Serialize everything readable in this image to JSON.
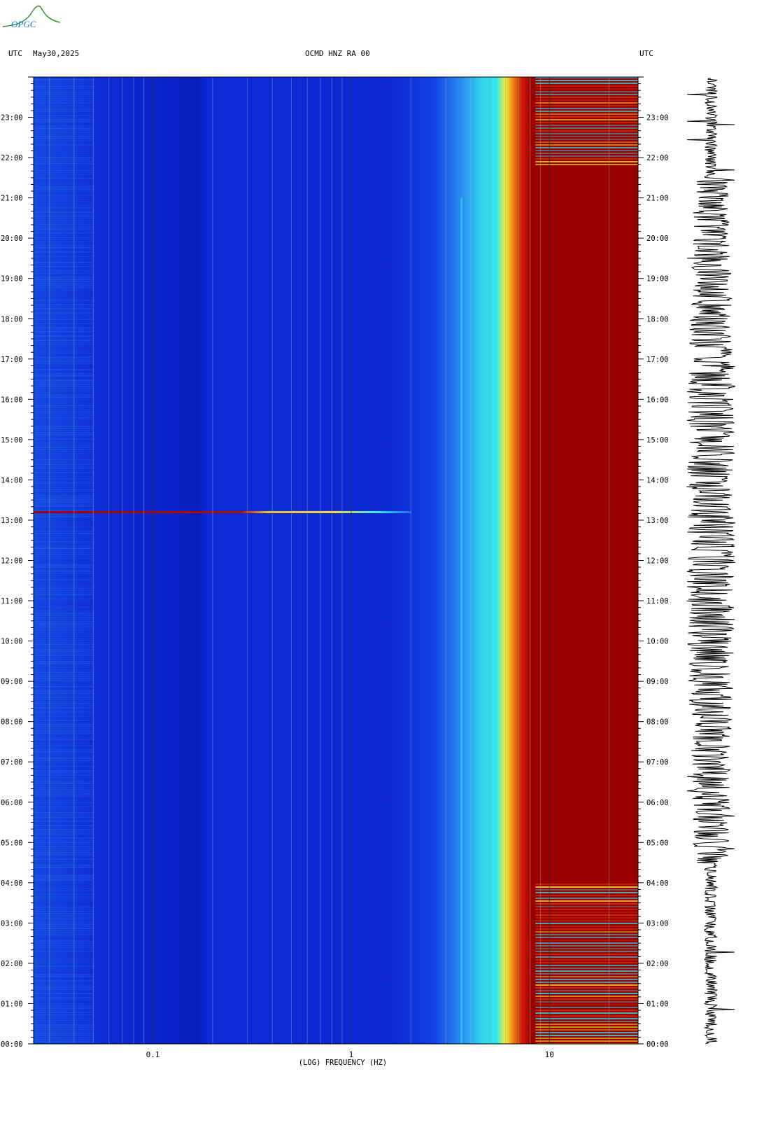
{
  "header": {
    "left_tz": "UTC",
    "date": "May30,2025",
    "station": "OCMD HNZ RA 00",
    "right_tz": "UTC"
  },
  "logo_text": "OPGC",
  "colors": {
    "blue": "#0a1ecf",
    "cyan": "#2ee6f0",
    "yellow": "#f2f23a",
    "red": "#9b0000",
    "trace": "#000000"
  },
  "chart_data": {
    "type": "heatmap",
    "title": "OCMD HNZ RA 00",
    "xlabel": "(LOG) FREQUENCY (HZ)",
    "ylabel": "",
    "x_scale": "log",
    "xlim": [
      0.025,
      28
    ],
    "x_tick_labels": [
      {
        "value": 0.1,
        "label": "0.1"
      },
      {
        "value": 1,
        "label": "1"
      },
      {
        "value": 10,
        "label": "10"
      }
    ],
    "y_tick_labels": [
      "00:00",
      "01:00",
      "02:00",
      "03:00",
      "04:00",
      "05:00",
      "06:00",
      "07:00",
      "08:00",
      "09:00",
      "10:00",
      "11:00",
      "12:00",
      "13:00",
      "14:00",
      "15:00",
      "16:00",
      "17:00",
      "18:00",
      "19:00",
      "20:00",
      "21:00",
      "22:00",
      "23:00"
    ],
    "ylim_hours": [
      0,
      24
    ],
    "features": [
      {
        "name": "broadband transient",
        "time_h": 13.2,
        "f_max_hz": 2.0
      },
      {
        "name": "spectral line",
        "freq_hz": 3.6
      },
      {
        "name": "high-energy band onset",
        "freq_hz": 6.5
      }
    ]
  }
}
